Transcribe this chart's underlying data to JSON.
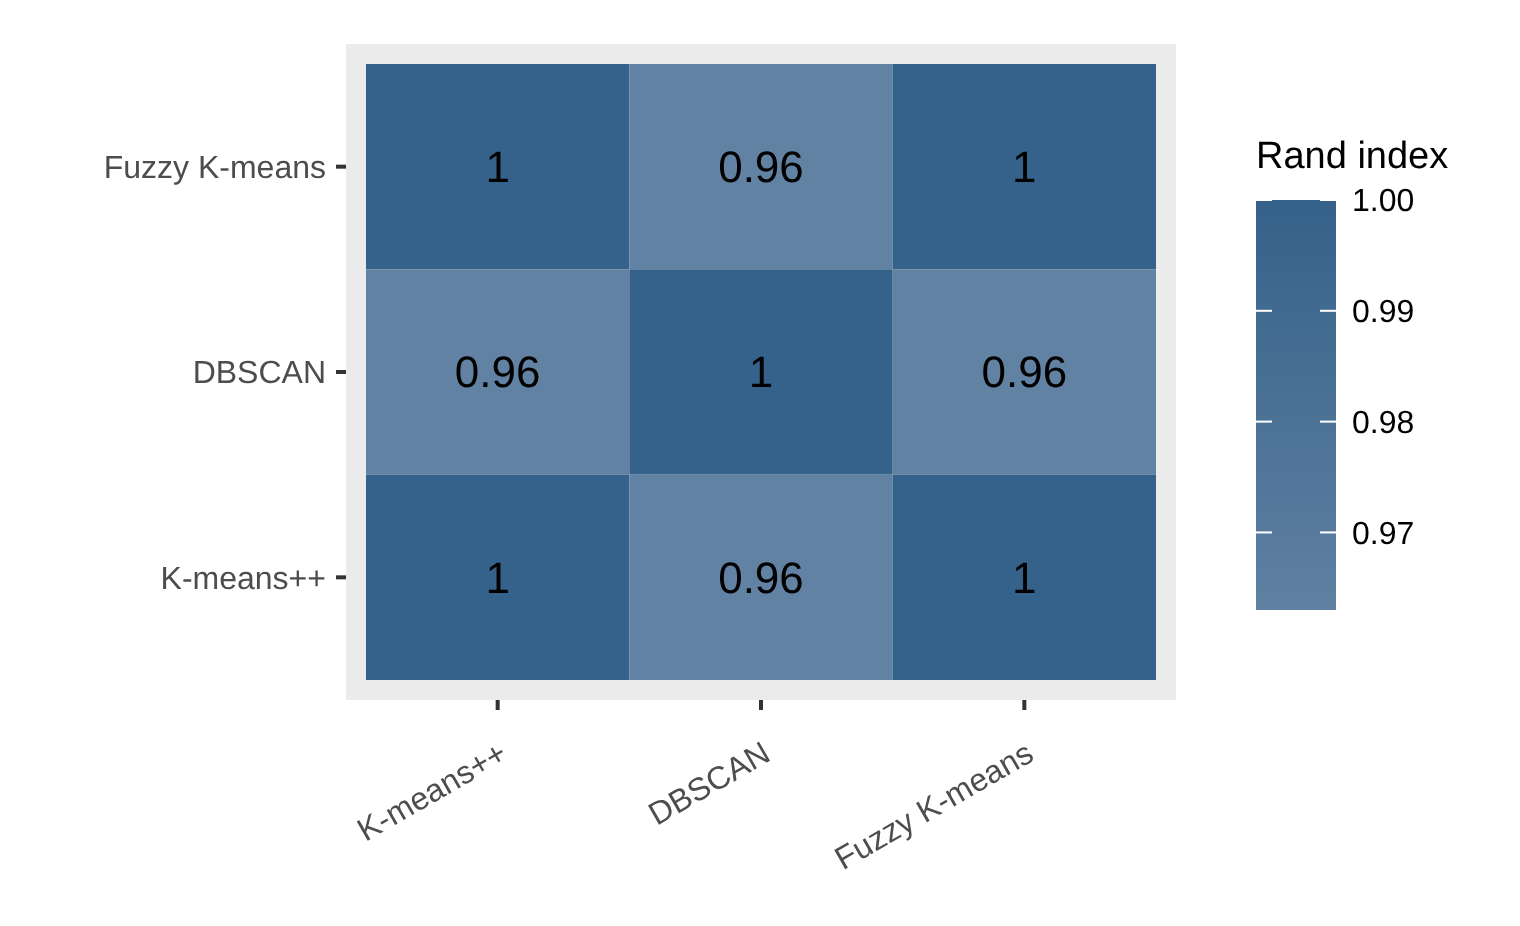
{
  "chart_data": {
    "type": "heatmap",
    "categories": [
      "K-means++",
      "DBSCAN",
      "Fuzzy K-means"
    ],
    "y_categories": [
      "Fuzzy K-means",
      "DBSCAN",
      "K-means++"
    ],
    "cells": [
      [
        1,
        0.96,
        1
      ],
      [
        0.96,
        1,
        0.96
      ],
      [
        1,
        0.96,
        1
      ]
    ],
    "data_labels": true,
    "clabel": "Rand index",
    "clim": [
      0.963,
      1.0
    ],
    "cticks": [
      0.97,
      0.98,
      0.99,
      {
        "value": 1.0,
        "label": "1.00"
      }
    ],
    "colors": [
      "#5f80a1",
      "#35628a"
    ]
  }
}
